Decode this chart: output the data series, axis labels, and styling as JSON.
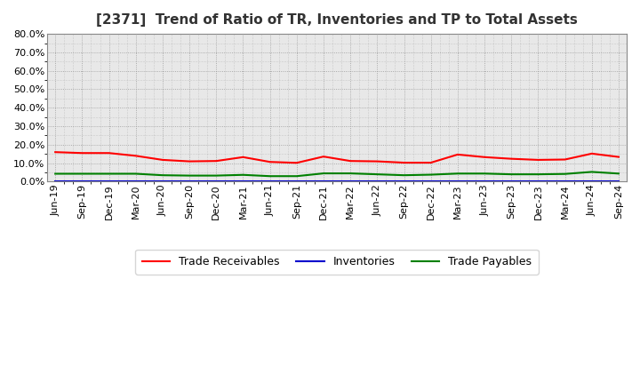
{
  "title": "[2371]  Trend of Ratio of TR, Inventories and TP to Total Assets",
  "x_labels": [
    "Jun-19",
    "Sep-19",
    "Dec-19",
    "Mar-20",
    "Jun-20",
    "Sep-20",
    "Dec-20",
    "Mar-21",
    "Jun-21",
    "Sep-21",
    "Dec-21",
    "Mar-22",
    "Jun-22",
    "Sep-22",
    "Dec-22",
    "Mar-23",
    "Jun-23",
    "Sep-23",
    "Dec-23",
    "Mar-24",
    "Jun-24",
    "Sep-24"
  ],
  "trade_receivables": [
    0.16,
    0.155,
    0.155,
    0.14,
    0.118,
    0.11,
    0.112,
    0.133,
    0.107,
    0.102,
    0.136,
    0.112,
    0.11,
    0.103,
    0.103,
    0.147,
    0.133,
    0.124,
    0.118,
    0.12,
    0.152,
    0.134
  ],
  "inventories": [
    0.001,
    0.001,
    0.001,
    0.001,
    0.001,
    0.001,
    0.001,
    0.001,
    0.001,
    0.001,
    0.001,
    0.001,
    0.001,
    0.001,
    0.001,
    0.001,
    0.001,
    0.001,
    0.001,
    0.001,
    0.001,
    0.001
  ],
  "trade_payables": [
    0.043,
    0.043,
    0.043,
    0.043,
    0.035,
    0.033,
    0.033,
    0.037,
    0.03,
    0.03,
    0.045,
    0.045,
    0.04,
    0.035,
    0.038,
    0.044,
    0.044,
    0.04,
    0.04,
    0.042,
    0.053,
    0.044
  ],
  "color_tr": "#FF0000",
  "color_inv": "#0000CD",
  "color_tp": "#008000",
  "ylim": [
    0.0,
    0.8
  ],
  "yticks": [
    0.0,
    0.1,
    0.2,
    0.3,
    0.4,
    0.5,
    0.6,
    0.7,
    0.8
  ],
  "plot_bg_color": "#E8E8E8",
  "background_color": "#FFFFFF",
  "grid_color": "#999999",
  "legend_labels": [
    "Trade Receivables",
    "Inventories",
    "Trade Payables"
  ],
  "title_fontsize": 11,
  "tick_fontsize": 8
}
